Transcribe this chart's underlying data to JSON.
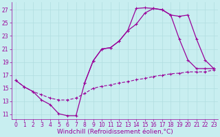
{
  "xlabel": "Windchill (Refroidissement éolien,°C)",
  "bg_color": "#c8eef0",
  "line_color": "#990099",
  "grid_color": "#b0dde0",
  "x_ticks": [
    0,
    1,
    2,
    3,
    4,
    5,
    6,
    7,
    8,
    9,
    10,
    11,
    12,
    13,
    14,
    15,
    16,
    17,
    18,
    19,
    20,
    21,
    22,
    23
  ],
  "y_ticks": [
    11,
    13,
    15,
    17,
    19,
    21,
    23,
    25,
    27
  ],
  "xlim": [
    -0.5,
    23.5
  ],
  "ylim": [
    10.3,
    28.2
  ],
  "line1_x": [
    0,
    1,
    2,
    3,
    4,
    5,
    6,
    7,
    8,
    9,
    10,
    11,
    12,
    13,
    14,
    15,
    16,
    17,
    18,
    19,
    20,
    21,
    22,
    23
  ],
  "line1_y": [
    16.2,
    15.2,
    14.5,
    13.2,
    12.5,
    11.1,
    10.8,
    10.8,
    15.8,
    19.2,
    21.0,
    21.2,
    22.2,
    23.8,
    27.2,
    27.3,
    27.2,
    27.0,
    26.2,
    22.5,
    19.3,
    18.0,
    18.0,
    18.0
  ],
  "line2_x": [
    0,
    1,
    2,
    3,
    4,
    5,
    6,
    7,
    8,
    9,
    10,
    11,
    12,
    13,
    14,
    15,
    16,
    17,
    18,
    19,
    20,
    21,
    22,
    23
  ],
  "line2_y": [
    16.2,
    15.2,
    14.5,
    13.2,
    12.5,
    11.1,
    10.8,
    10.8,
    15.8,
    19.2,
    21.0,
    21.2,
    22.2,
    23.8,
    24.8,
    26.5,
    27.2,
    27.0,
    26.2,
    26.0,
    26.2,
    22.5,
    19.3,
    18.0
  ],
  "line3_x": [
    0,
    1,
    2,
    3,
    4,
    5,
    6,
    7,
    8,
    9,
    10,
    11,
    12,
    13,
    14,
    15,
    16,
    17,
    18,
    19,
    20,
    21,
    22,
    23
  ],
  "line3_y": [
    16.2,
    15.2,
    14.5,
    14.0,
    13.5,
    13.2,
    13.2,
    13.5,
    14.2,
    15.0,
    15.3,
    15.5,
    15.8,
    16.0,
    16.3,
    16.5,
    16.8,
    17.0,
    17.2,
    17.3,
    17.5,
    17.5,
    17.5,
    17.8
  ],
  "tick_fontsize": 5.5,
  "xlabel_fontsize": 6.5
}
